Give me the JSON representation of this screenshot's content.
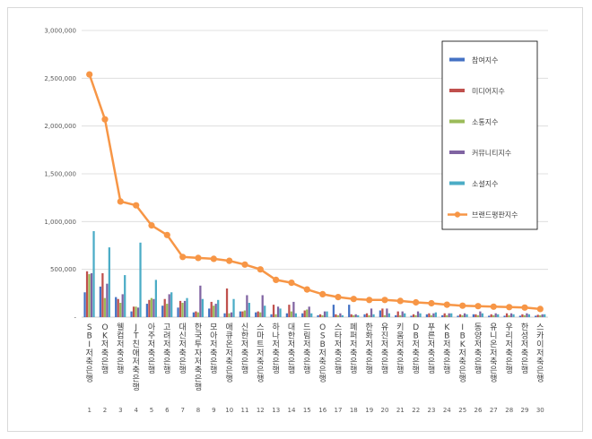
{
  "chart_data": {
    "type": "bar",
    "title": "",
    "xlabel": "",
    "ylabel": "",
    "ylim": [
      0,
      3000000
    ],
    "yticks": [
      0,
      500000,
      1000000,
      1500000,
      2000000,
      2500000,
      3000000
    ],
    "ytick_labels": [
      "-",
      "500,000",
      "1,000,000",
      "1,500,000",
      "2,000,000",
      "2,500,000",
      "3,000,000"
    ],
    "legend_position": "right",
    "categories": [
      "SBI저축은행",
      "OK저축은행",
      "웰컴저축은행",
      "JT친애저축은행",
      "아주저축은행",
      "고려저축은행",
      "대신저축은행",
      "한국투자저축은행",
      "모아저축은행",
      "애큐온저축은행",
      "신한저축은행",
      "스마트저축은행",
      "하나저축은행",
      "대한저축은행",
      "드림저축은행",
      "OSB저축은행",
      "스타저축은행",
      "페퍼저축은행",
      "한화저축은행",
      "유진저축은행",
      "키움저축은행",
      "DB저축은행",
      "푸른저축은행",
      "KB저축은행",
      "IBK저축은행",
      "동양저축은행",
      "유니온저축은행",
      "우리저축은행",
      "한성저축은행",
      "스카이저축은행"
    ],
    "category_index": [
      "1",
      "2",
      "3",
      "4",
      "5",
      "6",
      "7",
      "8",
      "9",
      "10",
      "11",
      "12",
      "13",
      "14",
      "15",
      "16",
      "17",
      "18",
      "19",
      "20",
      "21",
      "22",
      "23",
      "24",
      "25",
      "26",
      "27",
      "28",
      "29",
      "30"
    ],
    "series": [
      {
        "name": "참여지수",
        "color": "#4472c4",
        "kind": "bar",
        "values": [
          260000,
          320000,
          210000,
          60000,
          140000,
          120000,
          100000,
          50000,
          90000,
          40000,
          60000,
          50000,
          30000,
          40000,
          40000,
          20000,
          130000,
          130000,
          30000,
          70000,
          20000,
          15000,
          30000,
          20000,
          15000,
          30000,
          15000,
          15000,
          15000,
          15000
        ]
      },
      {
        "name": "미디어지수",
        "color": "#c0504d",
        "kind": "bar",
        "values": [
          480000,
          460000,
          190000,
          110000,
          180000,
          190000,
          170000,
          60000,
          160000,
          300000,
          60000,
          60000,
          130000,
          130000,
          70000,
          30000,
          30000,
          30000,
          40000,
          90000,
          60000,
          30000,
          40000,
          40000,
          30000,
          30000,
          30000,
          40000,
          30000,
          25000
        ]
      },
      {
        "name": "소통지수",
        "color": "#9bbb59",
        "kind": "bar",
        "values": [
          450000,
          200000,
          150000,
          110000,
          200000,
          140000,
          150000,
          50000,
          120000,
          40000,
          70000,
          50000,
          30000,
          60000,
          80000,
          20000,
          20000,
          20000,
          20000,
          20000,
          20000,
          20000,
          20000,
          20000,
          20000,
          20000,
          20000,
          20000,
          20000,
          20000
        ]
      },
      {
        "name": "커뮤니티지수",
        "color": "#8064a2",
        "kind": "bar",
        "values": [
          460000,
          350000,
          240000,
          100000,
          190000,
          240000,
          170000,
          330000,
          140000,
          50000,
          230000,
          230000,
          110000,
          160000,
          110000,
          60000,
          40000,
          30000,
          90000,
          90000,
          60000,
          60000,
          40000,
          40000,
          40000,
          60000,
          40000,
          40000,
          40000,
          30000
        ]
      },
      {
        "name": "소셜지수",
        "color": "#4bacc6",
        "kind": "bar",
        "values": [
          900000,
          730000,
          440000,
          780000,
          390000,
          260000,
          200000,
          190000,
          180000,
          190000,
          150000,
          120000,
          90000,
          40000,
          40000,
          60000,
          20000,
          20000,
          30000,
          40000,
          40000,
          40000,
          50000,
          40000,
          30000,
          40000,
          30000,
          30000,
          30000,
          30000
        ]
      },
      {
        "name": "브랜드평판지수",
        "color": "#f79646",
        "kind": "line",
        "values": [
          2540000,
          2070000,
          1210000,
          1170000,
          960000,
          860000,
          630000,
          620000,
          610000,
          590000,
          550000,
          500000,
          390000,
          360000,
          290000,
          240000,
          210000,
          190000,
          180000,
          180000,
          170000,
          155000,
          145000,
          130000,
          120000,
          115000,
          110000,
          105000,
          100000,
          85000
        ]
      }
    ]
  }
}
